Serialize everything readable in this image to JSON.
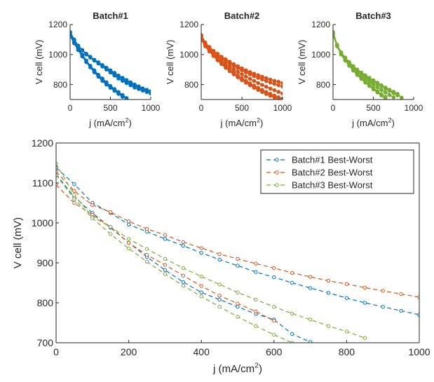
{
  "colors": {
    "batch1": "#0072BD",
    "batch2": "#D95319",
    "batch3": "#77AC30",
    "axis": "#262626"
  },
  "chart_data": [
    {
      "type": "line",
      "title": "Batch#1",
      "xlabel": "j (mA/cm",
      "xlabel_sup": "2",
      "xlabel_end": ")",
      "ylabel": "V cell (mV)",
      "xlim": [
        0,
        1000
      ],
      "ylim": [
        700,
        1200
      ],
      "xticks": [
        0,
        500,
        1000
      ],
      "yticks": [
        800,
        1000,
        1200
      ],
      "color": "batch1",
      "series": [
        {
          "x": [
            0,
            50,
            100,
            150,
            200,
            250,
            300,
            350,
            400,
            450,
            500,
            550,
            600,
            650,
            700,
            750,
            800,
            850,
            900,
            950,
            1000
          ],
          "y": [
            1150,
            1100,
            1060,
            1030,
            1000,
            980,
            960,
            940,
            920,
            900,
            880,
            860,
            840,
            825,
            810,
            795,
            780,
            770,
            760,
            750,
            740
          ]
        },
        {
          "x": [
            0,
            50,
            100,
            150,
            200,
            250,
            300,
            350,
            400,
            450,
            500,
            550,
            600,
            650,
            700,
            750,
            800,
            850,
            900,
            950,
            1000
          ],
          "y": [
            1140,
            1095,
            1058,
            1030,
            1005,
            985,
            965,
            948,
            930,
            912,
            895,
            878,
            860,
            845,
            830,
            815,
            800,
            788,
            775,
            765,
            755
          ]
        },
        {
          "x": [
            0,
            50,
            100,
            150,
            200,
            250,
            300,
            350,
            400,
            450,
            500,
            550,
            600,
            650,
            700,
            750,
            800,
            850,
            900,
            950,
            1000
          ],
          "y": [
            1130,
            1090,
            1055,
            1028,
            1003,
            982,
            962,
            943,
            925,
            907,
            890,
            872,
            856,
            840,
            825,
            810,
            795,
            782,
            770,
            760,
            748
          ]
        },
        {
          "x": [
            0,
            50,
            100,
            150,
            200,
            250,
            300,
            350,
            400,
            450,
            500,
            550,
            600,
            650,
            700
          ],
          "y": [
            1135,
            1085,
            1040,
            1000,
            960,
            925,
            895,
            865,
            840,
            815,
            790,
            770,
            750,
            730,
            710
          ]
        },
        {
          "x": [
            0,
            50,
            100,
            150,
            200,
            250,
            300,
            350,
            400,
            450,
            500,
            550,
            600,
            650,
            700
          ],
          "y": [
            1125,
            1075,
            1030,
            988,
            950,
            915,
            882,
            852,
            825,
            800,
            778,
            758,
            740,
            722,
            705
          ]
        },
        {
          "x": [
            0,
            50,
            100,
            150,
            200,
            250,
            300,
            350,
            400,
            450,
            500,
            550,
            600,
            650
          ],
          "y": [
            1145,
            1080,
            1035,
            992,
            955,
            920,
            888,
            858,
            830,
            805,
            782,
            760,
            738,
            718
          ]
        }
      ]
    },
    {
      "type": "line",
      "title": "Batch#2",
      "xlabel": "j (mA/cm",
      "xlabel_sup": "2",
      "xlabel_end": ")",
      "ylabel": "V cell (mV)",
      "xlim": [
        0,
        1000
      ],
      "ylim": [
        700,
        1200
      ],
      "xticks": [
        0,
        500,
        1000
      ],
      "yticks": [
        800,
        1000,
        1200
      ],
      "color": "batch2",
      "series": [
        {
          "x": [
            0,
            50,
            100,
            150,
            200,
            250,
            300,
            350,
            400,
            450,
            500,
            550,
            600,
            650,
            700,
            750,
            800,
            850,
            900,
            950,
            1000
          ],
          "y": [
            1130,
            1080,
            1050,
            1025,
            1005,
            985,
            968,
            952,
            936,
            922,
            908,
            895,
            883,
            872,
            862,
            852,
            842,
            833,
            825,
            818,
            810
          ]
        },
        {
          "x": [
            0,
            50,
            100,
            150,
            200,
            250,
            300,
            350,
            400,
            450,
            500,
            550,
            600,
            650,
            700,
            750,
            800,
            850,
            900,
            950,
            1000
          ],
          "y": [
            1120,
            1070,
            1040,
            1015,
            995,
            975,
            957,
            940,
            924,
            909,
            895,
            881,
            868,
            856,
            845,
            834,
            823,
            813,
            804,
            795,
            787
          ]
        },
        {
          "x": [
            0,
            50,
            100,
            150,
            200,
            250,
            300,
            350,
            400,
            450,
            500,
            550,
            600,
            650,
            700,
            750,
            800,
            850,
            900,
            950,
            1000
          ],
          "y": [
            1110,
            1062,
            1030,
            1003,
            980,
            958,
            938,
            919,
            901,
            884,
            868,
            853,
            838,
            824,
            810,
            797,
            785,
            773,
            762,
            751,
            740
          ]
        },
        {
          "x": [
            0,
            50,
            100,
            150,
            200,
            250,
            300,
            350,
            400,
            450,
            500,
            550,
            600,
            650,
            700,
            750,
            800,
            850,
            900,
            950,
            1000
          ],
          "y": [
            1125,
            1068,
            1032,
            1000,
            972,
            946,
            922,
            900,
            880,
            860,
            842,
            825,
            808,
            793,
            778,
            764,
            750,
            738,
            726,
            715,
            705
          ]
        },
        {
          "x": [
            0,
            50,
            100,
            150,
            200,
            250,
            300,
            350,
            400,
            450,
            500,
            550,
            600,
            650,
            700,
            750,
            800,
            850,
            900,
            950,
            1000
          ],
          "y": [
            1100,
            1055,
            1020,
            990,
            962,
            936,
            912,
            889,
            868,
            848,
            829,
            812,
            795,
            779,
            764,
            750,
            737,
            725,
            714,
            704,
            700
          ]
        }
      ]
    },
    {
      "type": "line",
      "title": "Batch#3",
      "xlabel": "j (mA/cm",
      "xlabel_sup": "2",
      "xlabel_end": ")",
      "ylabel": "V cell (mV)",
      "xlim": [
        0,
        1000
      ],
      "ylim": [
        700,
        1200
      ],
      "xticks": [
        0,
        500,
        1000
      ],
      "yticks": [
        800,
        1000,
        1200
      ],
      "color": "batch3",
      "series": [
        {
          "x": [
            0,
            50,
            100,
            150,
            200,
            250,
            300,
            350,
            400,
            450,
            500,
            550,
            600,
            650,
            700,
            750,
            800,
            850
          ],
          "y": [
            1150,
            1065,
            1015,
            980,
            950,
            923,
            900,
            880,
            862,
            845,
            828,
            812,
            795,
            780,
            765,
            752,
            738,
            712
          ]
        },
        {
          "x": [
            0,
            50,
            100,
            150,
            200,
            250,
            300,
            350,
            400,
            450,
            500,
            550,
            600,
            650,
            700,
            750,
            800
          ],
          "y": [
            1140,
            1062,
            1012,
            976,
            946,
            920,
            896,
            875,
            855,
            837,
            820,
            804,
            788,
            772,
            757,
            742,
            728
          ]
        },
        {
          "x": [
            0,
            50,
            100,
            150,
            200,
            250,
            300,
            350,
            400,
            450,
            500,
            550,
            600,
            650,
            700,
            750
          ],
          "y": [
            1135,
            1058,
            1008,
            972,
            940,
            912,
            886,
            862,
            840,
            820,
            800,
            782,
            764,
            747,
            730,
            715
          ]
        },
        {
          "x": [
            0,
            50,
            100,
            150,
            200,
            250,
            300,
            350,
            400,
            450,
            500,
            550,
            600,
            650
          ],
          "y": [
            1145,
            1060,
            1005,
            965,
            930,
            898,
            870,
            845,
            820,
            798,
            776,
            756,
            736,
            718
          ]
        },
        {
          "x": [
            0,
            50,
            100,
            150,
            200,
            250,
            300,
            350,
            400,
            450,
            500,
            550,
            600,
            650
          ],
          "y": [
            1130,
            1055,
            1000,
            960,
            925,
            893,
            864,
            838,
            813,
            790,
            768,
            747,
            727,
            705
          ]
        }
      ]
    },
    {
      "type": "line",
      "xlabel": "j (mA/cm",
      "xlabel_sup": "2",
      "xlabel_end": ")",
      "ylabel": "V cell (mV)",
      "xlim": [
        0,
        1000
      ],
      "ylim": [
        700,
        1200
      ],
      "xticks": [
        0,
        200,
        400,
        600,
        800,
        1000
      ],
      "yticks": [
        700,
        800,
        900,
        1000,
        1100,
        1200
      ],
      "legend_position": "top-right",
      "series": [
        {
          "name": "Batch#1 Best-Worst",
          "color": "batch1",
          "x": [
            0,
            50,
            100,
            150,
            200,
            250,
            300,
            350,
            400,
            450,
            500,
            550,
            600,
            650,
            700,
            750,
            800,
            850,
            900,
            950,
            1000
          ],
          "y": [
            1138,
            1097,
            1050,
            1025,
            996,
            978,
            960,
            943,
            925,
            908,
            893,
            877,
            864,
            850,
            837,
            825,
            812,
            800,
            790,
            780,
            770
          ]
        },
        {
          "name": "Batch#1 Best-Worst",
          "color": "batch1",
          "x": [
            0,
            50,
            100,
            150,
            200,
            250,
            300,
            350,
            400,
            450,
            500,
            550,
            600,
            650,
            700
          ],
          "y": [
            1122,
            1065,
            1025,
            988,
            950,
            915,
            882,
            852,
            826,
            808,
            790,
            772,
            758,
            722,
            702
          ]
        },
        {
          "name": "Batch#2 Best-Worst",
          "color": "batch2",
          "x": [
            0,
            50,
            100,
            150,
            200,
            250,
            300,
            350,
            400,
            450,
            500,
            550,
            600,
            650,
            700,
            750,
            800,
            850,
            900,
            950,
            1000
          ],
          "y": [
            1128,
            1080,
            1045,
            1027,
            1004,
            985,
            970,
            952,
            937,
            922,
            910,
            898,
            887,
            875,
            865,
            855,
            847,
            838,
            830,
            822,
            814
          ]
        },
        {
          "name": "Batch#2 Best-Worst",
          "color": "batch2",
          "x": [
            0,
            50,
            100,
            150,
            200,
            250,
            300,
            350,
            400,
            450,
            500,
            550,
            600
          ],
          "y": [
            1095,
            1050,
            1020,
            990,
            950,
            920,
            895,
            868,
            842,
            818,
            798,
            778,
            755
          ]
        },
        {
          "name": "Batch#3 Best-Worst",
          "color": "batch3",
          "x": [
            0,
            50,
            100,
            150,
            200,
            250,
            300,
            350,
            400,
            450,
            500,
            550,
            600,
            650,
            700,
            750,
            800,
            850
          ],
          "y": [
            1148,
            1070,
            1015,
            990,
            960,
            935,
            910,
            887,
            866,
            846,
            826,
            808,
            790,
            773,
            758,
            742,
            728,
            712
          ]
        },
        {
          "name": "Batch#3 Best-Worst",
          "color": "batch3",
          "x": [
            0,
            50,
            100,
            150,
            200,
            250,
            300,
            350,
            400,
            450,
            500,
            550,
            600,
            650
          ],
          "y": [
            1120,
            1060,
            1012,
            972,
            936,
            903,
            872,
            843,
            816,
            790,
            765,
            742,
            720,
            700
          ]
        }
      ],
      "legend": [
        "Batch#1 Best-Worst",
        "Batch#2 Best-Worst",
        "Batch#3 Best-Worst"
      ]
    }
  ]
}
